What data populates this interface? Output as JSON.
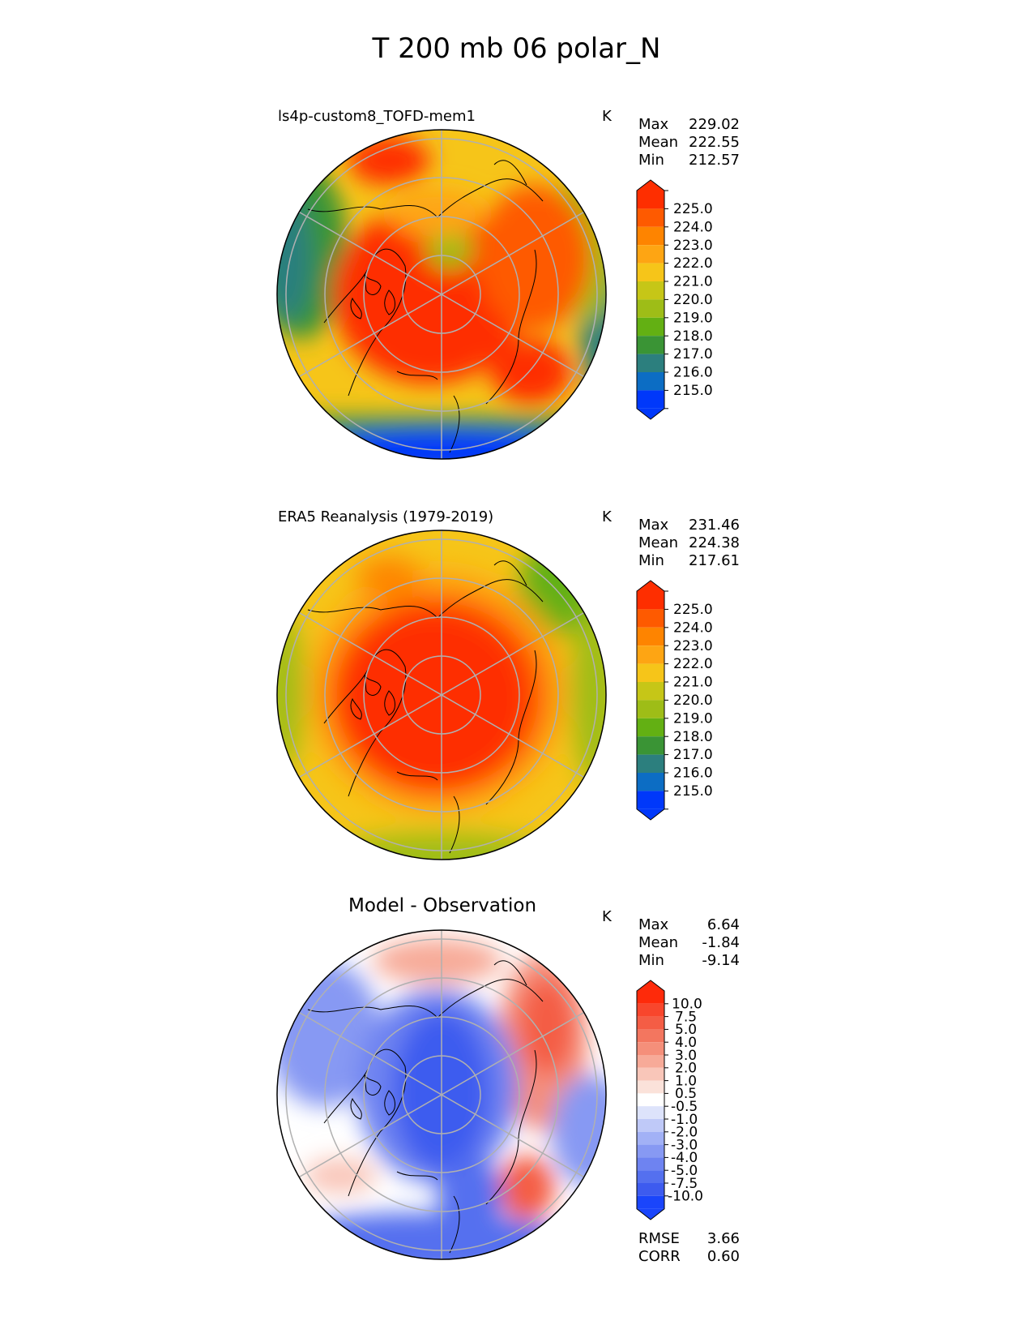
{
  "figure": {
    "title": "T 200 mb 06 polar_N"
  },
  "panels": [
    {
      "title": "ls4p-custom8_TOFD-mem1",
      "units": "K",
      "stats": [
        {
          "label": "Max",
          "value": "229.02"
        },
        {
          "label": "Mean",
          "value": "222.55"
        },
        {
          "label": "Min",
          "value": "212.57"
        }
      ],
      "colorbar": {
        "labels": [
          "225.0",
          "224.0",
          "223.0",
          "222.0",
          "221.0",
          "220.0",
          "219.0",
          "218.0",
          "217.0",
          "216.0",
          "215.0"
        ],
        "colors": [
          "#fe2e00",
          "#fe5a00",
          "#fe8400",
          "#fea513",
          "#f6c519",
          "#c6c617",
          "#9ebd17",
          "#63b013",
          "#3a9435",
          "#2c7f7e",
          "#0c6dc4",
          "#0038fa"
        ]
      }
    },
    {
      "title": "ERA5 Reanalysis (1979-2019)",
      "units": "K",
      "stats": [
        {
          "label": "Max",
          "value": "231.46"
        },
        {
          "label": "Mean",
          "value": "224.38"
        },
        {
          "label": "Min",
          "value": "217.61"
        }
      ],
      "colorbar": {
        "labels": [
          "225.0",
          "224.0",
          "223.0",
          "222.0",
          "221.0",
          "220.0",
          "219.0",
          "218.0",
          "217.0",
          "216.0",
          "215.0"
        ],
        "colors": [
          "#fe2e00",
          "#fe5a00",
          "#fe8400",
          "#fea513",
          "#f6c519",
          "#c6c617",
          "#9ebd17",
          "#63b013",
          "#3a9435",
          "#2c7f7e",
          "#0c6dc4",
          "#0038fa"
        ]
      }
    },
    {
      "title": "Model - Observation",
      "units": "K",
      "stats": [
        {
          "label": "Max",
          "value": "6.64"
        },
        {
          "label": "Mean",
          "value": "-1.84"
        },
        {
          "label": "Min",
          "value": "-9.14"
        }
      ],
      "colorbar": {
        "labels": [
          "10.0",
          "7.5",
          "5.0",
          "4.0",
          "3.0",
          "2.0",
          "1.0",
          "0.5",
          "-0.5",
          "-1.0",
          "-2.0",
          "-3.0",
          "-4.0",
          "-5.0",
          "-7.5",
          "-10.0"
        ],
        "colors": [
          "#fe2a0a",
          "#f8462c",
          "#f45d45",
          "#f3765f",
          "#f58f7a",
          "#f7aa98",
          "#f9c6b9",
          "#fbe2da",
          "#ffffff",
          "#dde3fb",
          "#bfc9f8",
          "#a2b1f6",
          "#8799f3",
          "#6e83f1",
          "#5470ef",
          "#3d5bef",
          "#1a45fb"
        ]
      },
      "extra_stats": [
        {
          "label": "RMSE",
          "value": "3.66"
        },
        {
          "label": "CORR",
          "value": "0.60"
        }
      ]
    }
  ]
}
